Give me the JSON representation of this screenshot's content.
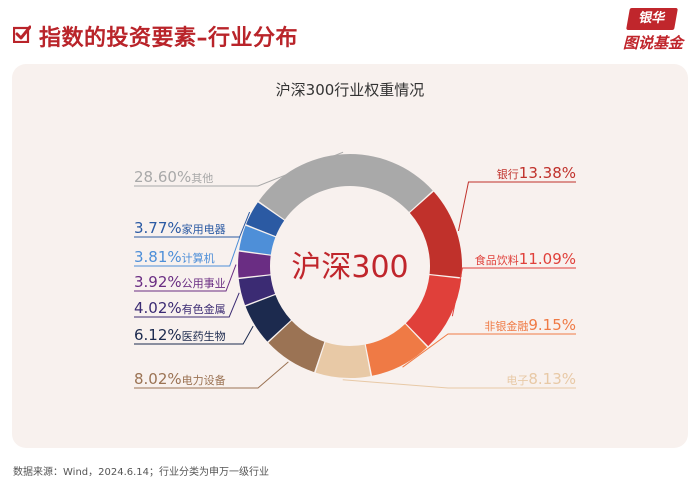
{
  "header": {
    "title": "指数的投资要素–行业分布",
    "brand_top": "银华",
    "brand_bottom": "图说基金"
  },
  "colors": {
    "accent": "#b9242a",
    "card_bg": "#f8f1ee"
  },
  "chart_data": {
    "type": "pie",
    "title": "沪深300行业权重情况",
    "center_label": "沪深300",
    "unit": "%",
    "slices": [
      {
        "name": "银行",
        "value": 13.38,
        "value_label": "13.38%",
        "color": "#c0312b",
        "side": "right"
      },
      {
        "name": "食品饮料",
        "value": 11.09,
        "value_label": "11.09%",
        "color": "#e0403a",
        "side": "right"
      },
      {
        "name": "非银金融",
        "value": 9.15,
        "value_label": "9.15%",
        "color": "#ef7a45",
        "side": "right"
      },
      {
        "name": "电子",
        "value": 8.13,
        "value_label": "8.13%",
        "color": "#e8c9a6",
        "side": "right"
      },
      {
        "name": "电力设备",
        "value": 8.02,
        "value_label": "8.02%",
        "color": "#9b7354",
        "side": "left"
      },
      {
        "name": "医药生物",
        "value": 6.12,
        "value_label": "6.12%",
        "color": "#1c2a4e",
        "side": "left"
      },
      {
        "name": "有色金属",
        "value": 4.02,
        "value_label": "4.02%",
        "color": "#3b2b73",
        "side": "left"
      },
      {
        "name": "公用事业",
        "value": 3.92,
        "value_label": "3.92%",
        "color": "#6a2d83",
        "side": "left"
      },
      {
        "name": "计算机",
        "value": 3.81,
        "value_label": "3.81%",
        "color": "#4e8fd8",
        "side": "left"
      },
      {
        "name": "家用电器",
        "value": 3.77,
        "value_label": "3.77%",
        "color": "#2b5aa3",
        "side": "left"
      },
      {
        "name": "其他",
        "value": 28.6,
        "value_label": "28.60%",
        "color": "#a9a9a9",
        "side": "left"
      }
    ]
  },
  "footnote": "数据来源：Wind，2024.6.14；行业分类为申万一级行业"
}
